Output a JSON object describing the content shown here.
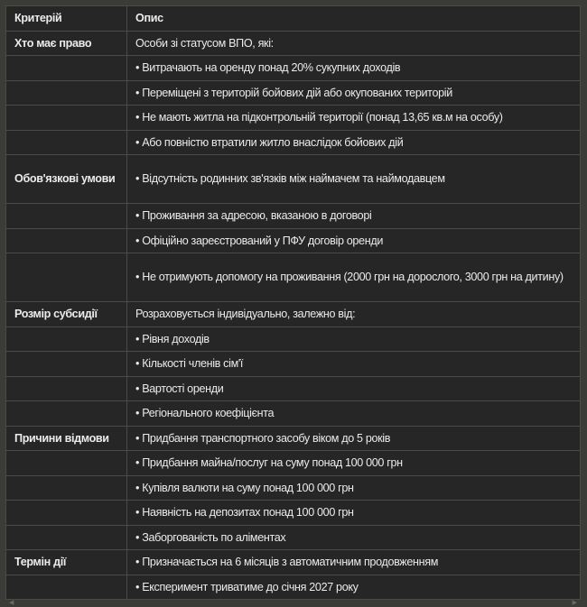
{
  "table": {
    "headers": [
      "Критерій",
      "Опис"
    ],
    "rows": [
      [
        "Хто має право",
        "Особи зі статусом ВПО, які:"
      ],
      [
        "",
        "• Витрачають на оренду понад 20% сукупних доходів"
      ],
      [
        "",
        "• Переміщені з територій бойових дій або окупованих територій"
      ],
      [
        "",
        "• Не мають житла на підконтрольній території (понад 13,65 кв.м на особу)"
      ],
      [
        "",
        "• Або повністю втратили житло внаслідок бойових дій"
      ],
      [
        "Обов'язкові умови",
        "• Відсутність родинних зв'язків між наймачем та наймодавцем"
      ],
      [
        "",
        "• Проживання за адресою, вказаною в договорі"
      ],
      [
        "",
        "• Офіційно зареєстрований у ПФУ договір оренди"
      ],
      [
        "",
        "• Не отримують допомогу на проживання (2000 грн на дорослого, 3000 грн на дитину)"
      ],
      [
        "Розмір субсидії",
        "Розраховується індивідуально, залежно від:"
      ],
      [
        "",
        "• Рівня доходів"
      ],
      [
        "",
        "• Кількості членів сім'ї"
      ],
      [
        "",
        "• Вартості оренди"
      ],
      [
        "",
        "• Регіонального коефіцієнта"
      ],
      [
        "Причини відмови",
        "• Придбання транспортного засобу віком до 5 років"
      ],
      [
        "",
        "• Придбання майна/послуг на суму понад 100 000 грн"
      ],
      [
        "",
        "• Купівля валюти на суму понад 100 000 грн"
      ],
      [
        "",
        "• Наявність на депозитах понад 100 000 грн"
      ],
      [
        "",
        "• Заборгованість по аліментах"
      ],
      [
        "Термін дії",
        "• Призначається на 6 місяців з автоматичним продовженням"
      ],
      [
        "",
        "• Експеримент триватиме до січня 2027 року"
      ]
    ]
  },
  "scrollbar": {
    "left_icon": "arrow-left-icon",
    "right_icon": "arrow-right-icon"
  }
}
